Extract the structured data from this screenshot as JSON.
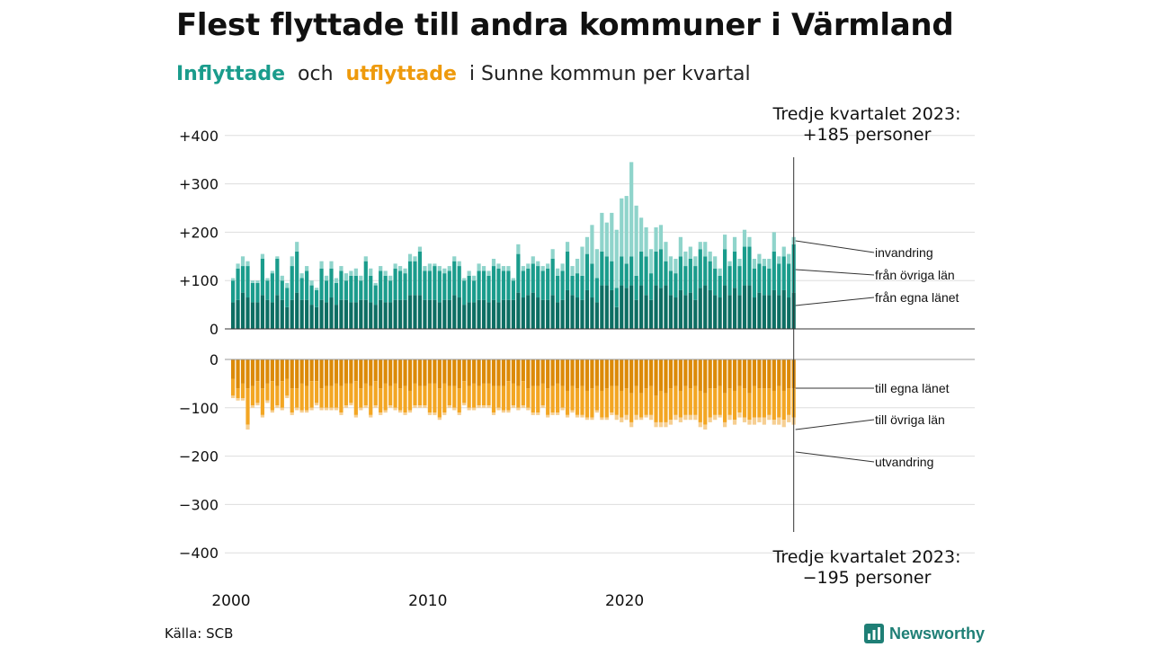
{
  "header": {
    "title": "Flest flyttade till andra kommuner i Värmland",
    "subtitle": {
      "inflow": "Inflyttade",
      "and": "och",
      "outflow": "utflyttade",
      "rest": "i Sunne  kommun  per  kvartal"
    }
  },
  "footer": {
    "source": "Källa: SCB",
    "brand": "Newsworthy"
  },
  "colors": {
    "in_local": "#0d6e63",
    "in_other": "#1a9c8c",
    "in_immig": "#8fd4cb",
    "out_local": "#dc8a08",
    "out_other": "#f3a623",
    "out_emig": "#f6cf92",
    "grid": "#dddddd",
    "text": "#111111",
    "brand": "#1f7f76"
  },
  "chart_data": {
    "type": "bar",
    "stacked": true,
    "x_start": "2000 Q1",
    "frequency": "quarterly",
    "x_ticks": [
      "2000",
      "2010",
      "2020"
    ],
    "y_ticks_top": [
      "+400",
      "+300",
      "+200",
      "+100",
      "0"
    ],
    "y_ticks_bottom": [
      "0",
      "−100",
      "−200",
      "−300",
      "−400"
    ],
    "ylim_top": [
      0,
      400
    ],
    "ylim_bottom": [
      -400,
      0
    ],
    "inflow_series": [
      {
        "name": "från egna länet",
        "values": [
          55,
          60,
          75,
          65,
          55,
          55,
          70,
          60,
          55,
          70,
          60,
          45,
          60,
          75,
          60,
          60,
          50,
          45,
          60,
          55,
          65,
          50,
          60,
          60,
          55,
          55,
          60,
          60,
          55,
          50,
          60,
          55,
          55,
          60,
          60,
          60,
          70,
          70,
          70,
          60,
          60,
          60,
          55,
          60,
          60,
          70,
          65,
          50,
          55,
          55,
          60,
          60,
          55,
          60,
          55,
          60,
          60,
          60,
          75,
          65,
          70,
          75,
          65,
          60,
          60,
          70,
          55,
          60,
          80,
          70,
          65,
          60,
          80,
          65,
          55,
          90,
          90,
          80,
          45,
          90,
          85,
          90,
          60,
          90,
          70,
          60,
          90,
          85,
          90,
          70,
          65,
          80,
          70,
          75,
          60,
          85,
          90,
          80,
          70,
          65,
          90,
          70,
          85,
          70,
          90,
          90,
          65,
          75,
          70,
          70,
          80,
          70,
          80,
          65,
          75
        ]
      },
      {
        "name": "från övriga län",
        "values": [
          45,
          65,
          55,
          65,
          40,
          40,
          75,
          40,
          60,
          75,
          40,
          40,
          70,
          85,
          45,
          60,
          40,
          35,
          65,
          45,
          60,
          45,
          60,
          40,
          55,
          55,
          40,
          80,
          55,
          40,
          60,
          55,
          45,
          65,
          60,
          55,
          70,
          70,
          90,
          60,
          60,
          70,
          65,
          55,
          60,
          70,
          65,
          50,
          55,
          45,
          60,
          60,
          55,
          70,
          70,
          60,
          60,
          40,
          80,
          55,
          55,
          60,
          65,
          60,
          65,
          75,
          55,
          60,
          80,
          40,
          50,
          50,
          75,
          70,
          50,
          70,
          60,
          60,
          40,
          60,
          50,
          60,
          50,
          70,
          80,
          55,
          70,
          80,
          50,
          50,
          50,
          70,
          60,
          70,
          70,
          80,
          60,
          60,
          55,
          45,
          75,
          60,
          75,
          60,
          80,
          80,
          60,
          60,
          60,
          55,
          80,
          65,
          70,
          70,
          100
        ]
      },
      {
        "name": "invandring",
        "values": [
          5,
          10,
          20,
          10,
          5,
          5,
          10,
          5,
          5,
          5,
          10,
          10,
          20,
          20,
          10,
          10,
          10,
          5,
          15,
          10,
          15,
          10,
          10,
          15,
          10,
          15,
          10,
          10,
          15,
          5,
          10,
          10,
          10,
          10,
          10,
          10,
          15,
          10,
          10,
          10,
          15,
          5,
          10,
          10,
          10,
          10,
          10,
          5,
          10,
          10,
          15,
          10,
          10,
          15,
          10,
          10,
          10,
          5,
          20,
          10,
          10,
          15,
          10,
          10,
          10,
          20,
          15,
          15,
          20,
          20,
          30,
          60,
          35,
          80,
          60,
          80,
          70,
          100,
          120,
          120,
          140,
          195,
          145,
          70,
          60,
          50,
          50,
          50,
          40,
          30,
          30,
          40,
          30,
          25,
          20,
          15,
          30,
          20,
          25,
          15,
          30,
          10,
          30,
          15,
          35,
          20,
          20,
          20,
          15,
          20,
          40,
          15,
          20,
          20,
          15
        ]
      }
    ],
    "outflow_series": [
      {
        "name": "till egna länet",
        "values": [
          -40,
          -60,
          -50,
          -60,
          -55,
          -45,
          -60,
          -50,
          -45,
          -55,
          -45,
          -40,
          -60,
          -60,
          -50,
          -55,
          -45,
          -45,
          -60,
          -55,
          -55,
          -50,
          -55,
          -50,
          -50,
          -45,
          -60,
          -50,
          -55,
          -45,
          -60,
          -50,
          -55,
          -50,
          -60,
          -55,
          -65,
          -50,
          -55,
          -55,
          -50,
          -50,
          -60,
          -50,
          -55,
          -55,
          -60,
          -45,
          -55,
          -50,
          -55,
          -50,
          -50,
          -55,
          -55,
          -55,
          -45,
          -50,
          -55,
          -45,
          -60,
          -55,
          -55,
          -50,
          -60,
          -55,
          -50,
          -55,
          -65,
          -55,
          -60,
          -55,
          -65,
          -60,
          -55,
          -65,
          -60,
          -55,
          -55,
          -65,
          -60,
          -70,
          -55,
          -70,
          -60,
          -55,
          -75,
          -65,
          -70,
          -60,
          -55,
          -65,
          -55,
          -60,
          -55,
          -65,
          -70,
          -60,
          -60,
          -55,
          -70,
          -60,
          -65,
          -55,
          -60,
          -70,
          -55,
          -60,
          -60,
          -60,
          -65,
          -55,
          -65,
          -60,
          -60
        ]
      },
      {
        "name": "till övriga län",
        "values": [
          -35,
          -20,
          -30,
          -75,
          -40,
          -45,
          -55,
          -35,
          -60,
          -40,
          -55,
          -35,
          -50,
          -40,
          -55,
          -50,
          -55,
          -45,
          -40,
          -45,
          -45,
          -50,
          -55,
          -45,
          -40,
          -70,
          -40,
          -45,
          -60,
          -50,
          -50,
          -55,
          -40,
          -50,
          -45,
          -55,
          -40,
          -45,
          -40,
          -40,
          -60,
          -60,
          -60,
          -60,
          -40,
          -45,
          -50,
          -45,
          -45,
          -50,
          -40,
          -45,
          -45,
          -55,
          -45,
          -50,
          -60,
          -45,
          -45,
          -50,
          -40,
          -55,
          -55,
          -45,
          -55,
          -55,
          -60,
          -45,
          -50,
          -50,
          -55,
          -60,
          -55,
          -60,
          -50,
          -55,
          -60,
          -55,
          -60,
          -55,
          -55,
          -60,
          -60,
          -50,
          -55,
          -60,
          -55,
          -65,
          -60,
          -65,
          -60,
          -55,
          -60,
          -55,
          -60,
          -65,
          -65,
          -60,
          -55,
          -60,
          -60,
          -55,
          -60,
          -55,
          -60,
          -55,
          -65,
          -60,
          -60,
          -55,
          -60,
          -65,
          -60,
          -55,
          -60
        ]
      },
      {
        "name": "utvandring",
        "values": [
          -5,
          -5,
          -5,
          -10,
          -5,
          -5,
          -5,
          -5,
          -5,
          -5,
          -5,
          -5,
          -5,
          -5,
          -5,
          -5,
          -5,
          -5,
          -5,
          -5,
          -5,
          -5,
          -5,
          -5,
          -5,
          -5,
          -5,
          -5,
          -5,
          -5,
          -5,
          -5,
          -5,
          -5,
          -5,
          -5,
          -5,
          -5,
          -5,
          -5,
          -5,
          -5,
          -5,
          -5,
          -5,
          -5,
          -5,
          -5,
          -5,
          -5,
          -5,
          -5,
          -5,
          -5,
          -5,
          -5,
          -5,
          -5,
          -5,
          -5,
          -5,
          -5,
          -5,
          -5,
          -5,
          -5,
          -5,
          -5,
          -5,
          -5,
          -5,
          -5,
          -5,
          -5,
          -5,
          -5,
          -5,
          -5,
          -10,
          -10,
          -10,
          -10,
          -10,
          -5,
          -5,
          -10,
          -10,
          -10,
          -10,
          -10,
          -10,
          -10,
          -10,
          -10,
          -10,
          -10,
          -10,
          -10,
          -10,
          -5,
          -10,
          -10,
          -10,
          -10,
          -10,
          -10,
          -15,
          -10,
          -15,
          -10,
          -10,
          -15,
          -15,
          -15,
          -15
        ]
      }
    ],
    "annotation_top": {
      "line1": "Tredje kvartalet 2023:",
      "line2": "+185 personer"
    },
    "annotation_bottom": {
      "line1": "Tredje kvartalet 2023:",
      "line2": "−195 personer"
    },
    "legend_labels_top": [
      "invandring",
      "från övriga län",
      "från egna länet"
    ],
    "legend_labels_bottom": [
      "till egna länet",
      "till övriga län",
      "utvandring"
    ],
    "grid": true
  }
}
